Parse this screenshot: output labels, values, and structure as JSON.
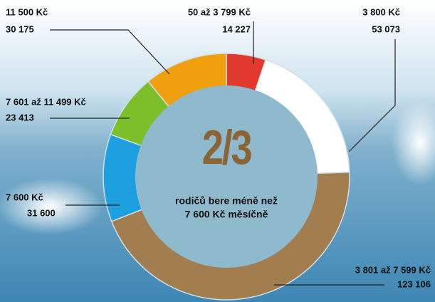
{
  "chart_data": {
    "type": "donut",
    "categories": [
      "50 až 3 799 Kč",
      "3 800 Kč",
      "3 801 až 7 599 Kč",
      "7 600 Kč",
      "7 601 až 11 499 Kč",
      "11 500 Kč"
    ],
    "values": [
      14227,
      53073,
      123106,
      31600,
      23413,
      30175
    ],
    "value_labels": [
      "14 227",
      "53 073",
      "123 106",
      "31 600",
      "23 413",
      "30 175"
    ],
    "colors": [
      "#e2392f",
      "#ffffff",
      "#a27d4f",
      "#1d9fe0",
      "#7dbf2b",
      "#f09f0e"
    ],
    "center_big": "2/3",
    "center_text": [
      "rodičů bere méně než",
      "7 600 Kč měsíčně"
    ]
  }
}
